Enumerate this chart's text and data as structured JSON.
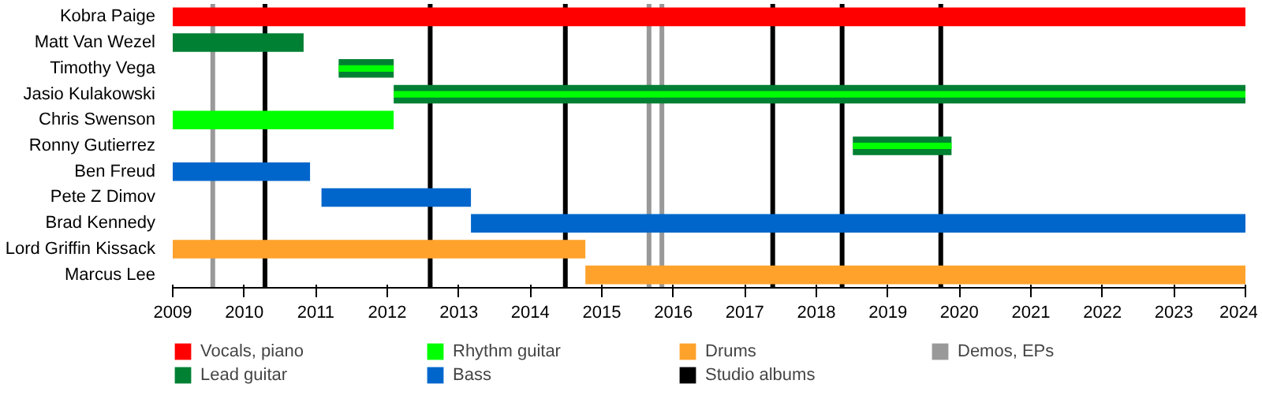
{
  "chart_data": {
    "type": "bar",
    "orientation": "horizontal",
    "categories": [
      "Kobra Paige",
      "Matt Van Wezel",
      "Timothy Vega",
      "Jasio Kulakowski",
      "Chris Swenson",
      "Ronny Gutierrez",
      "Ben Freud",
      "Pete Z Dimov",
      "Brad Kennedy",
      "Lord Griffin Kissack",
      "Marcus Lee"
    ],
    "series": [
      {
        "name": "Vocals, piano",
        "color": "#ff0000",
        "base": [
          2009,
          null,
          null,
          null,
          null,
          null,
          null,
          null,
          null,
          null,
          null
        ],
        "values": [
          15,
          null,
          null,
          null,
          null,
          null,
          null,
          null,
          null,
          null,
          null
        ]
      },
      {
        "name": "Lead guitar",
        "color": "#008033",
        "base": [
          null,
          2009,
          2011.32,
          2012.09,
          null,
          2018.51,
          null,
          null,
          null,
          null,
          null
        ],
        "values": [
          null,
          1.83,
          0.77,
          11.91,
          null,
          1.38,
          null,
          null,
          null,
          null,
          null
        ]
      },
      {
        "name": "Rhythm guitar",
        "color": "#00ff00",
        "base": [
          null,
          null,
          2011.32,
          2012.09,
          2009,
          2018.51,
          null,
          null,
          null,
          null,
          null
        ],
        "values": [
          null,
          null,
          0.77,
          11.91,
          3.09,
          1.38,
          null,
          null,
          null,
          null,
          null
        ]
      },
      {
        "name": "Bass",
        "color": "#0066cc",
        "base": [
          null,
          null,
          null,
          null,
          null,
          null,
          2009,
          2011.08,
          2013.17,
          null,
          null
        ],
        "values": [
          null,
          null,
          null,
          null,
          null,
          null,
          1.92,
          2.09,
          10.83,
          null,
          null
        ]
      },
      {
        "name": "Drums",
        "color": "#ffa22b",
        "base": [
          null,
          null,
          null,
          null,
          null,
          null,
          null,
          null,
          null,
          2009,
          2014.77
        ],
        "values": [
          null,
          null,
          null,
          null,
          null,
          null,
          null,
          null,
          null,
          5.77,
          9.23
        ]
      }
    ],
    "ref_lines": [
      {
        "axis": "x",
        "value": 2010.29,
        "label": "Studio albums",
        "color": "#000000"
      },
      {
        "axis": "x",
        "value": 2012.6,
        "color": "#000000"
      },
      {
        "axis": "x",
        "value": 2014.49,
        "color": "#000000"
      },
      {
        "axis": "x",
        "value": 2017.39,
        "color": "#000000"
      },
      {
        "axis": "x",
        "value": 2018.36,
        "color": "#000000"
      },
      {
        "axis": "x",
        "value": 2019.74,
        "color": "#000000"
      },
      {
        "axis": "x",
        "value": 2009.56,
        "label": "Demos, EPs",
        "color": "#999999"
      },
      {
        "axis": "x",
        "value": 2015.66,
        "color": "#999999"
      },
      {
        "axis": "x",
        "value": 2015.84,
        "color": "#999999"
      }
    ],
    "xlim": [
      2009,
      2024
    ],
    "xticks": [
      2009,
      2010,
      2011,
      2012,
      2013,
      2014,
      2015,
      2016,
      2017,
      2018,
      2019,
      2020,
      2021,
      2022,
      2023,
      2024
    ],
    "grid": false,
    "legend": "bottom"
  }
}
